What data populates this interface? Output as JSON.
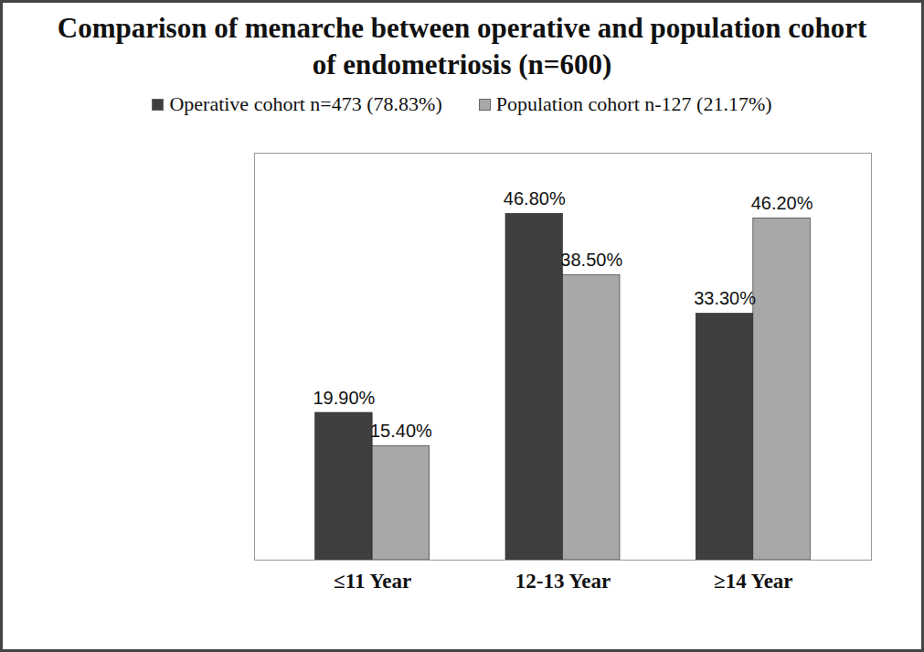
{
  "chart_data": {
    "type": "bar",
    "title": "Comparison of menarche between operative and population cohort of endometriosis (n=600)",
    "categories": [
      "≤11 Year",
      "12-13 Year",
      "≥14 Year"
    ],
    "series": [
      {
        "name": "Operative cohort n=473 (78.83%)",
        "color": "#3f3f3f",
        "values": [
          19.9,
          46.8,
          33.3
        ],
        "value_labels": [
          "19.90%",
          "46.80%",
          "33.30%"
        ]
      },
      {
        "name": "Population cohort n-127 (21.17%)",
        "color": "#a8a8a8",
        "values": [
          15.4,
          38.5,
          46.2
        ],
        "value_labels": [
          "15.40%",
          "38.50%",
          "46.20%"
        ]
      }
    ],
    "ylim": [
      0,
      55
    ],
    "yticks": [],
    "grid": false,
    "legend": "top",
    "data_labels": true,
    "tick_labels": "x"
  }
}
